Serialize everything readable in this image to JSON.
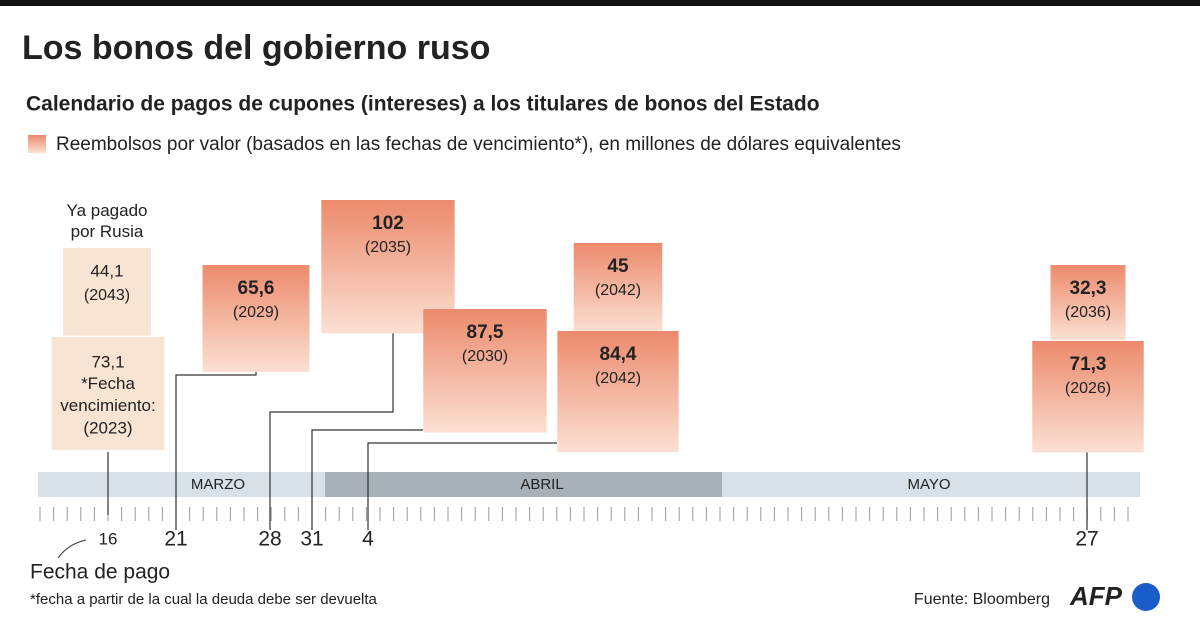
{
  "header": {
    "title": "Los bonos del gobierno ruso",
    "subtitle": "Calendario de pagos de cupones (intereses) a los titulares de bonos del Estado",
    "legend": "Reembolsos por valor (basados en las fechas de vencimiento*), en millones de dólares equivalentes"
  },
  "months": [
    "MARZO",
    "ABRIL",
    "MAYO"
  ],
  "paid_note": "Ya pagado por Rusia",
  "groups": [
    {
      "day": 16,
      "paid": true,
      "payments": [
        {
          "value": 44.1,
          "value_label": "44,1",
          "maturity": "(2043)"
        },
        {
          "value": 73.1,
          "value_label": "73,1",
          "note": "*Fecha vencimiento:",
          "maturity": "(2023)"
        }
      ]
    },
    {
      "day": 21,
      "payments": [
        {
          "value": 65.6,
          "value_label": "65,6",
          "maturity": "(2029)"
        }
      ]
    },
    {
      "day": 28,
      "payments": [
        {
          "value": 102,
          "maturity": "(2035)"
        }
      ]
    },
    {
      "day": 31,
      "payments": [
        {
          "value": 87.5,
          "value_label": "87,5",
          "maturity": "(2030)"
        }
      ]
    },
    {
      "day": 4,
      "payments": [
        {
          "value": 45,
          "maturity": "(2042)"
        },
        {
          "value": 84.4,
          "value_label": "84,4",
          "maturity": "(2042)"
        }
      ]
    },
    {
      "day": 27,
      "payments": [
        {
          "value": 32.3,
          "value_label": "32,3",
          "maturity": "(2036)"
        },
        {
          "value": 71.3,
          "value_label": "71,3",
          "maturity": "(2026)"
        }
      ]
    }
  ],
  "axis_label": "Fecha de pago",
  "footnote": "*fecha a partir de la cual la deuda debe ser devuelta",
  "source": "Fuente: Bloomberg",
  "logo": "AFP"
}
